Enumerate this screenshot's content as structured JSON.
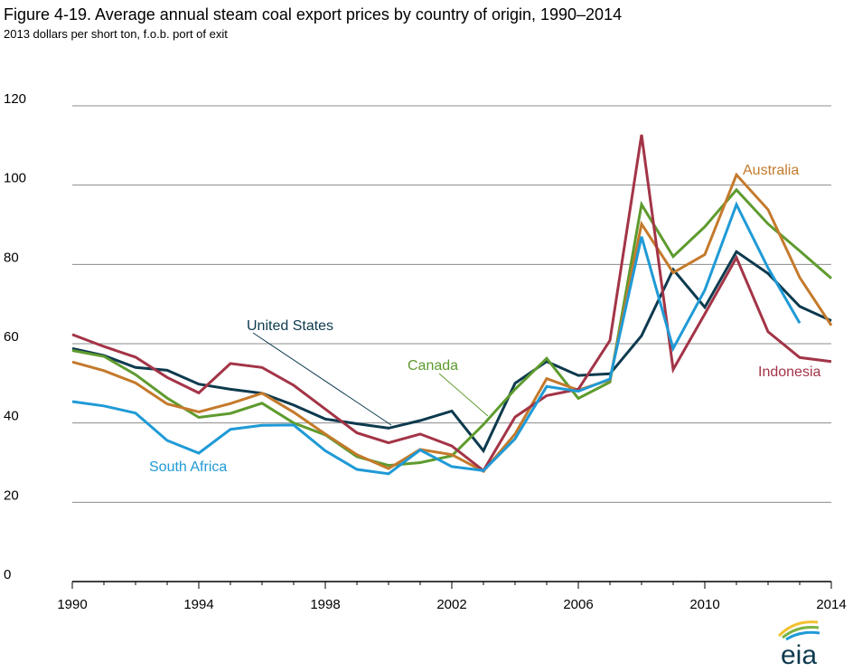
{
  "header": {
    "title": "Figure 4-19. Average annual steam coal export prices by country of origin, 1990–2014",
    "subtitle": "2013 dollars per short ton, f.o.b. port of exit"
  },
  "logo": {
    "text": "eia"
  },
  "colors": {
    "grid": "#8c8c8c",
    "axis": "#000000",
    "united_states": "#0d3a4e",
    "canada": "#5e9b2e",
    "australia": "#c47a2c",
    "indonesia": "#a33447",
    "south_africa": "#1f9ad6"
  },
  "chart_data": {
    "type": "line",
    "title": "Figure 4-19. Average annual steam coal export prices by country of origin, 1990–2014",
    "subtitle": "2013 dollars per short ton, f.o.b. port of exit",
    "xlabel": "",
    "ylabel": "",
    "xlim": [
      1990,
      2014
    ],
    "ylim": [
      0,
      120
    ],
    "xticks": [
      1990,
      1994,
      1998,
      2002,
      2006,
      2010,
      2014
    ],
    "yticks": [
      0,
      20,
      40,
      60,
      80,
      100,
      120
    ],
    "grid": true,
    "legend": "inline labels",
    "x": [
      1990,
      1991,
      1992,
      1993,
      1994,
      1995,
      1996,
      1997,
      1998,
      1999,
      2000,
      2001,
      2002,
      2003,
      2004,
      2005,
      2006,
      2007,
      2008,
      2009,
      2010,
      2011,
      2012,
      2013,
      2014
    ],
    "series": [
      {
        "name": "United States",
        "key": "united_states",
        "values": [
          58.8,
          57,
          54,
          53.3,
          49.8,
          48.5,
          47.5,
          44.5,
          41,
          39.8,
          38.7,
          40.6,
          43,
          33,
          50,
          55.5,
          52,
          52.4,
          62,
          78.7,
          69.2,
          83.2,
          77.7,
          69.4,
          65.8
        ]
      },
      {
        "name": "Canada",
        "key": "canada",
        "values": [
          58.3,
          56.8,
          52.2,
          46.3,
          41.4,
          42.4,
          45,
          40,
          37,
          31.5,
          29.3,
          30,
          31.7,
          39.6,
          48.5,
          56.3,
          46.2,
          50.3,
          95.1,
          82,
          89.5,
          98.8,
          90.2,
          83.4,
          76.5
        ]
      },
      {
        "name": "Australia",
        "key": "australia",
        "values": [
          55.4,
          53.2,
          50.1,
          44.8,
          42.8,
          44.9,
          47.5,
          42.7,
          37.2,
          32,
          28.5,
          33.3,
          32,
          27.8,
          37.2,
          51.2,
          48.3,
          50.9,
          90.2,
          77.9,
          82.5,
          102.6,
          93.8,
          76.7,
          64.6
        ]
      },
      {
        "name": "Indonesia",
        "key": "indonesia",
        "values": [
          62.3,
          59.3,
          56.6,
          51.5,
          47.6,
          55,
          54,
          49.5,
          43.5,
          37.5,
          35,
          37.2,
          34.2,
          28,
          41.5,
          46.9,
          48.5,
          60.8,
          112.7,
          53.5,
          67.5,
          81.7,
          63,
          56.5,
          55.5
        ]
      },
      {
        "name": "South Africa",
        "key": "south_africa",
        "values": [
          45.4,
          44.3,
          42.5,
          35.6,
          32.4,
          38.4,
          39.4,
          39.5,
          33,
          28.3,
          27.2,
          33.2,
          29,
          28,
          36,
          49.2,
          48,
          51.1,
          87,
          58.8,
          73.5,
          95.1,
          79.1,
          65.2,
          null
        ]
      }
    ],
    "annotations": [
      {
        "key": "united_states",
        "text": "United States"
      },
      {
        "key": "canada",
        "text": "Canada"
      },
      {
        "key": "australia",
        "text": "Australia"
      },
      {
        "key": "indonesia",
        "text": "Indonesia"
      },
      {
        "key": "south_africa",
        "text": "South Africa"
      }
    ]
  }
}
